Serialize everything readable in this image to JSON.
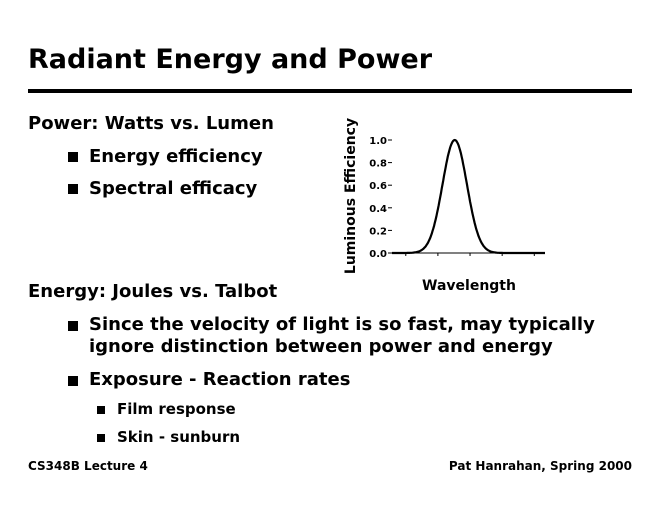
{
  "title": "Radiant Energy and Power",
  "bullets": {
    "power": "Power: Watts vs. Lumen",
    "energy_efficiency": "Energy efficiency",
    "spectral_efficacy": "Spectral efficacy",
    "energy": "Energy: Joules vs. Talbot",
    "velocity_line1": "Since the velocity of light is so fast, may typically",
    "velocity_line2": "ignore distinction between power and energy",
    "exposure": "Exposure - Reaction rates",
    "film": "Film response",
    "skin": "Skin - sunburn"
  },
  "footer": {
    "left": "CS348B Lecture 4",
    "right": "Pat Hanrahan, Spring 2000"
  },
  "chart_data": {
    "type": "line",
    "title": "",
    "xlabel": "Wavelength",
    "ylabel": "Luminous Efficiency",
    "xlim": [
      0,
      100
    ],
    "ylim": [
      0,
      1
    ],
    "yticks": [
      "0.0",
      "0.2",
      "0.4",
      "0.6",
      "0.8",
      "1.0"
    ],
    "xticks": [
      9,
      30,
      51,
      72,
      93
    ],
    "series": [
      {
        "name": "luminous efficiency",
        "shape": "gaussian",
        "center": 41,
        "sigma": 8,
        "peak": 1.0
      }
    ]
  }
}
